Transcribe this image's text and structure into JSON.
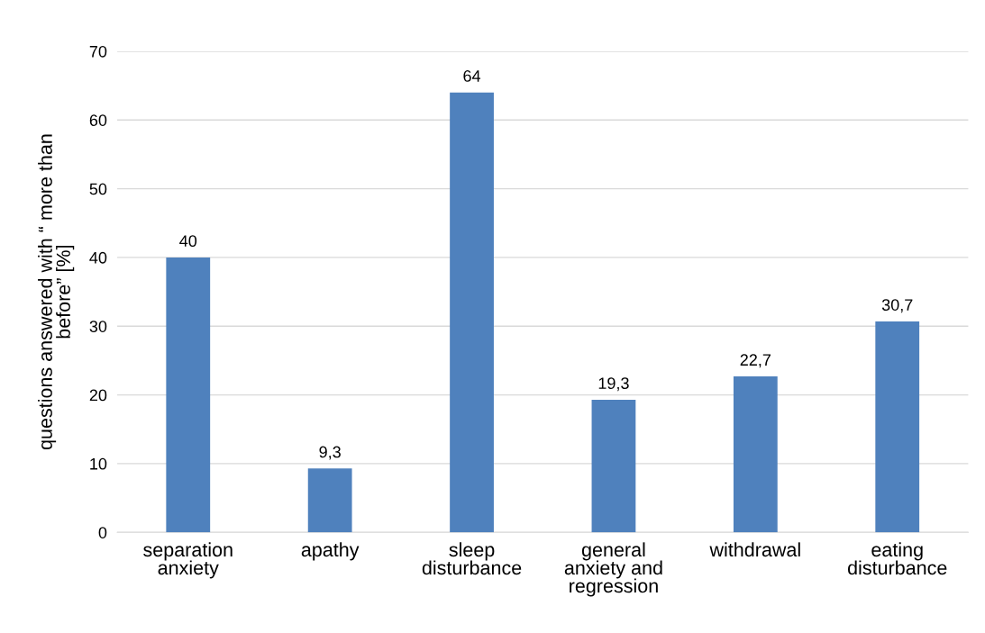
{
  "chart_data": {
    "type": "bar",
    "ylabel": "questions answered with “ more than\nbefore” [%]",
    "categories": [
      "separation\nanxiety",
      "apathy",
      "sleep\ndisturbance",
      "general\nanxiety and\nregression",
      "withdrawal",
      "eating\ndisturbance"
    ],
    "values": [
      40,
      9.3,
      64,
      19.3,
      22.7,
      30.7
    ],
    "value_labels": [
      "40",
      "9,3",
      "64",
      "19,3",
      "22,7",
      "30,7"
    ],
    "color": "#4f81bd",
    "ylim": [
      0,
      70
    ],
    "yticks": [
      0,
      10,
      20,
      30,
      40,
      50,
      60,
      70
    ],
    "grid": "y",
    "legend": false
  }
}
